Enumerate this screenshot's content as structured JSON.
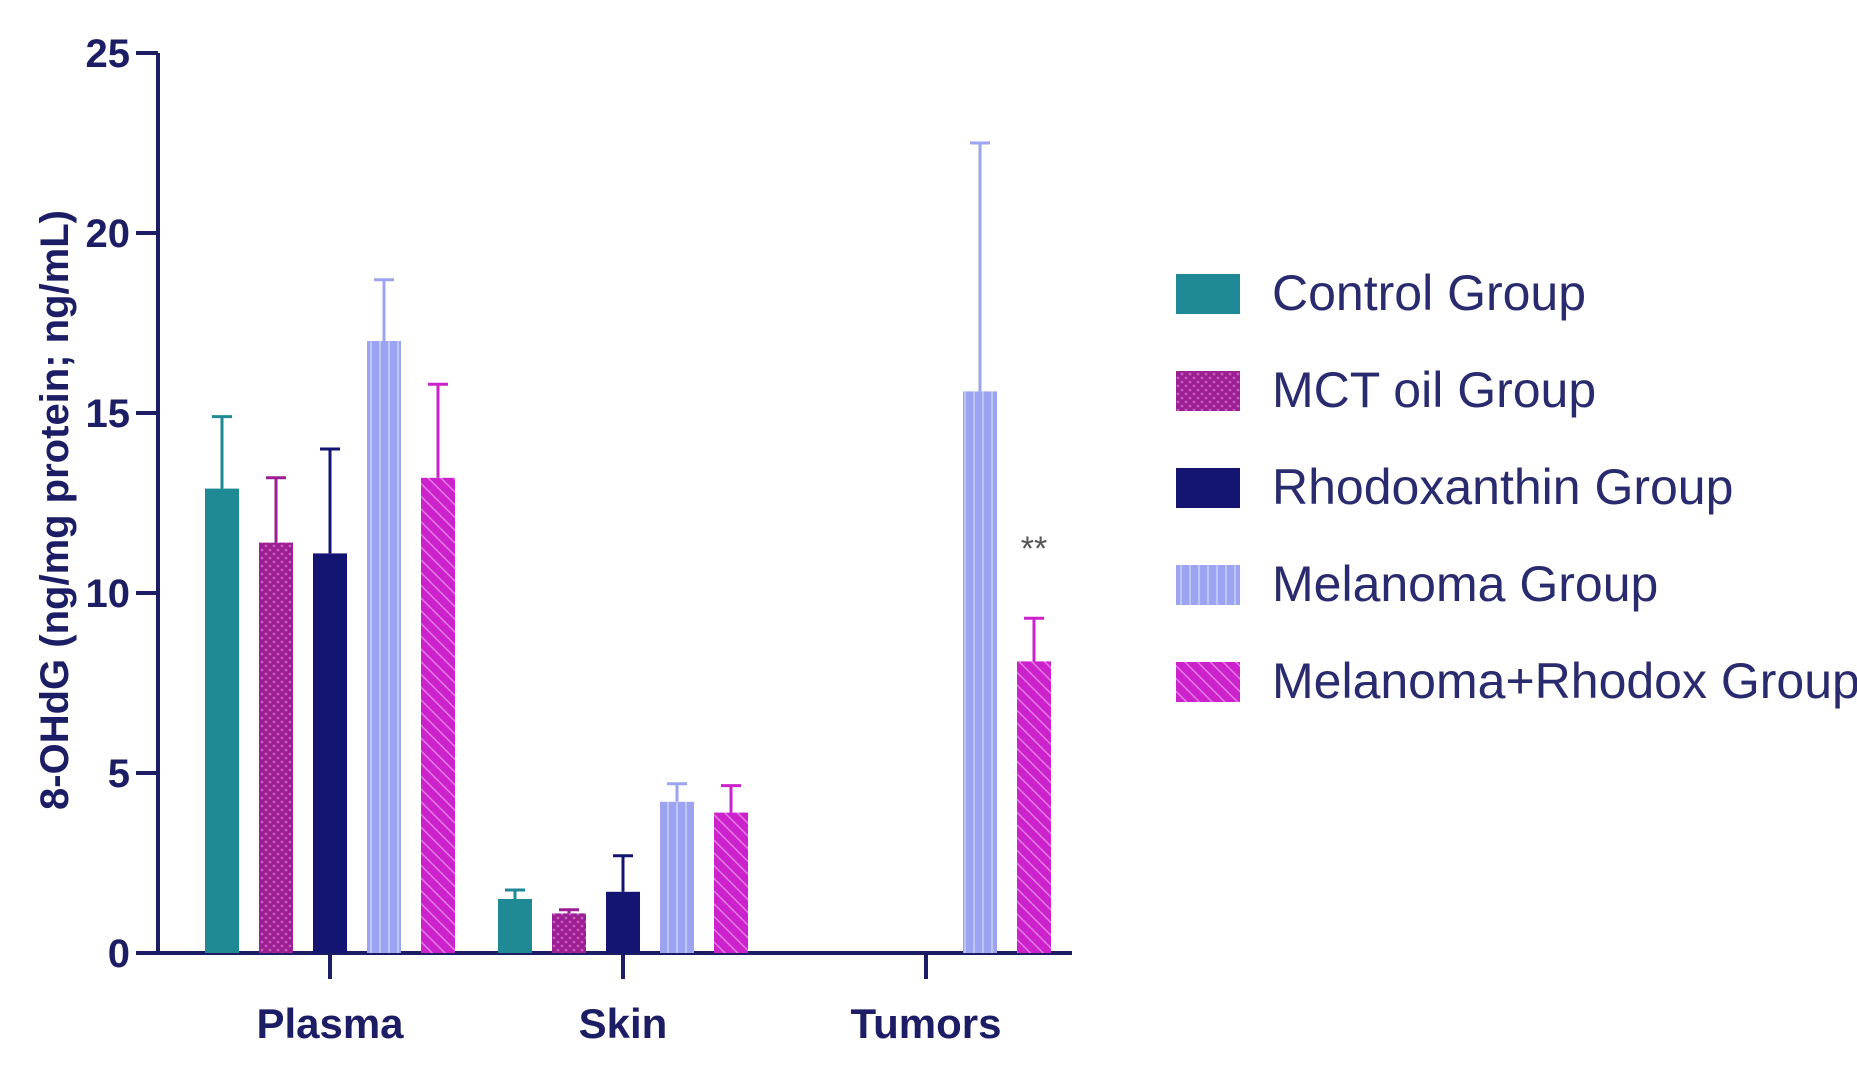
{
  "chart_data": {
    "type": "bar",
    "title": "",
    "xlabel": "",
    "ylabel": "8-OHdG (ng/mg protein; ng/mL)",
    "ylim": [
      0,
      25
    ],
    "yticks": [
      0,
      5,
      10,
      15,
      20,
      25
    ],
    "categories": [
      "Plasma",
      "Skin",
      "Tumors"
    ],
    "legend_position": "right",
    "series": [
      {
        "name": "Control Group",
        "color": "#1f8a96",
        "pattern": "solid",
        "values": [
          12.9,
          1.5,
          null
        ],
        "errors": [
          2.0,
          0.25,
          null
        ]
      },
      {
        "name": "MCT oil Group",
        "color": "#9b1f92",
        "pattern": "dots",
        "values": [
          11.4,
          1.1,
          null
        ],
        "errors": [
          1.8,
          0.1,
          null
        ]
      },
      {
        "name": "Rhodoxanthin Group",
        "color": "#141473",
        "pattern": "solid",
        "values": [
          11.1,
          1.7,
          null
        ],
        "errors": [
          2.9,
          1.0,
          null
        ]
      },
      {
        "name": "Melanoma Group",
        "color": "#9ca3f0",
        "pattern": "vlines",
        "values": [
          17.0,
          4.2,
          15.6
        ],
        "errors": [
          1.7,
          0.5,
          6.9
        ]
      },
      {
        "name": "Melanoma+Rhodox Group",
        "color": "#cc22cc",
        "pattern": "diagonal",
        "values": [
          13.2,
          3.9,
          8.1
        ],
        "errors": [
          2.6,
          0.75,
          1.2
        ]
      }
    ],
    "annotations": [
      {
        "text": "**",
        "category": "Tumors",
        "series": "Melanoma+Rhodox Group"
      }
    ]
  }
}
